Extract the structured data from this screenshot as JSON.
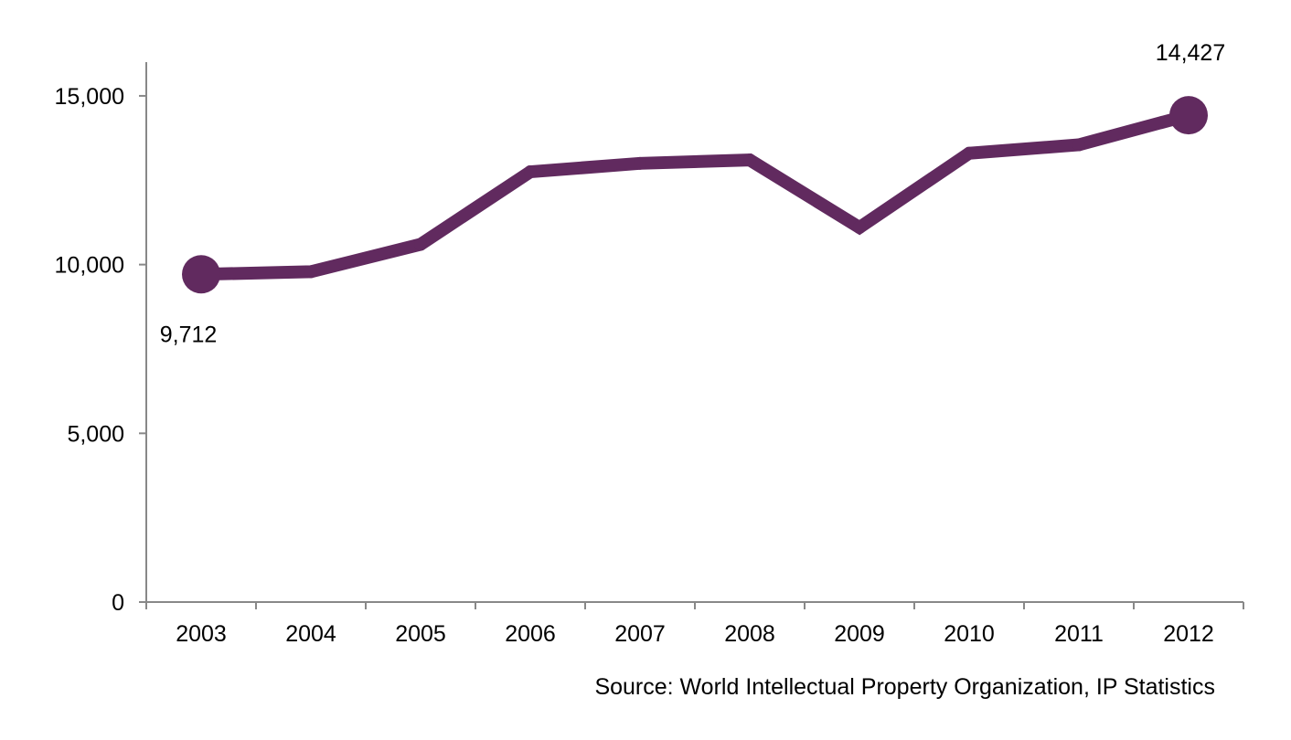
{
  "chart_data": {
    "type": "line",
    "title": "",
    "xlabel": "",
    "ylabel": "",
    "categories": [
      "2003",
      "2004",
      "2005",
      "2006",
      "2007",
      "2008",
      "2009",
      "2010",
      "2011",
      "2012"
    ],
    "series": [
      {
        "values": [
          9712,
          9790,
          10600,
          12750,
          13000,
          13100,
          11100,
          13300,
          13550,
          14427
        ],
        "color": "#612a5f"
      }
    ],
    "ylim": [
      0,
      16000
    ],
    "yticks": [
      0,
      5000,
      10000,
      15000
    ],
    "ytick_labels": [
      "0",
      "5,000",
      "10,000",
      "15,000"
    ],
    "data_labels": [
      {
        "index": 0,
        "text": "9,712"
      },
      {
        "index": 9,
        "text": "14,427"
      }
    ],
    "grid": false,
    "legend": "none",
    "axis_color": "#888888"
  },
  "source": "Source: World Intellectual Property Organization, IP Statistics"
}
